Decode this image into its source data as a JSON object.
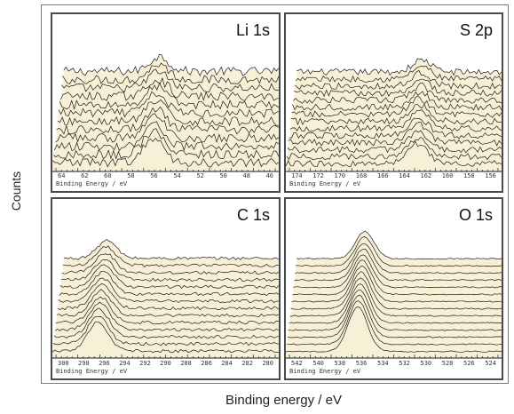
{
  "figure": {
    "ylabel": "Counts",
    "xlabel": "Binding energy / eV",
    "fill_color": "#f7efd6",
    "line_color": "#1a1a1a"
  },
  "chart_data": [
    {
      "type": "area",
      "title": "Li 1s",
      "xlabel": "Binding Energy / eV",
      "x_ticks": [
        "64",
        "62",
        "60",
        "58",
        "56",
        "54",
        "52",
        "50",
        "48",
        "46"
      ],
      "xlim": [
        64,
        46
      ],
      "n_spectra": 12,
      "peak_x": 56,
      "peak_height": 0.55,
      "noise": 0.35
    },
    {
      "type": "area",
      "title": "S 2p",
      "xlabel": "Binding Energy / eV",
      "x_ticks": [
        "174",
        "172",
        "170",
        "168",
        "166",
        "164",
        "162",
        "160",
        "158",
        "156"
      ],
      "xlim": [
        174,
        156
      ],
      "n_spectra": 14,
      "peak_x": 163,
      "peak_height": 0.45,
      "noise": 0.25
    },
    {
      "type": "area",
      "title": "C 1s",
      "xlabel": "Binding Energy / eV",
      "x_ticks": [
        "300",
        "298",
        "296",
        "294",
        "292",
        "290",
        "288",
        "286",
        "284",
        "282",
        "280"
      ],
      "xlim": [
        300,
        280
      ],
      "n_spectra": 14,
      "peak_x": 296,
      "peak_height": 0.65,
      "noise": 0.12
    },
    {
      "type": "area",
      "title": "O 1s",
      "xlabel": "Binding Energy / eV",
      "x_ticks": [
        "542",
        "540",
        "538",
        "536",
        "534",
        "532",
        "530",
        "528",
        "526",
        "524"
      ],
      "xlim": [
        542,
        524
      ],
      "n_spectra": 14,
      "peak_x": 536,
      "peak_height": 1.0,
      "noise": 0.05
    }
  ]
}
